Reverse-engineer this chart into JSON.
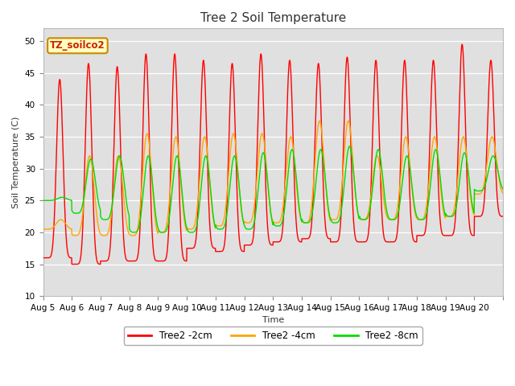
{
  "title": "Tree 2 Soil Temperature",
  "xlabel": "Time",
  "ylabel": "Soil Temperature (C)",
  "ylim": [
    10,
    52
  ],
  "yticks": [
    10,
    15,
    20,
    25,
    30,
    35,
    40,
    45,
    50
  ],
  "legend_label": "TZ_soilco2",
  "series": {
    "2cm": {
      "color": "#ff0000",
      "label": "Tree2 -2cm"
    },
    "4cm": {
      "color": "#ffa500",
      "label": "Tree2 -4cm"
    },
    "8cm": {
      "color": "#00dd00",
      "label": "Tree2 -8cm"
    }
  },
  "bg_color": "#e0e0e0",
  "fig_color": "#ffffff",
  "days": [
    "Aug 5",
    "Aug 6",
    "Aug 7",
    "Aug 8",
    "Aug 9",
    "Aug 10",
    "Aug 11",
    "Aug 12",
    "Aug 13",
    "Aug 14",
    "Aug 15",
    "Aug 16",
    "Aug 17",
    "Aug 18",
    "Aug 19",
    "Aug 20"
  ],
  "peaks_2cm": [
    44,
    46.5,
    46,
    48,
    48,
    47,
    46.5,
    48,
    47,
    46.5,
    47.5,
    47,
    47,
    47,
    49.5,
    47
  ],
  "troughs_2cm": [
    16,
    15,
    15.5,
    15.5,
    15.5,
    17.5,
    17,
    18,
    18.5,
    19,
    18.5,
    18.5,
    18.5,
    19.5,
    19.5,
    22.5
  ],
  "peaks_4cm": [
    22,
    32,
    32,
    35.5,
    35,
    35,
    35.5,
    35.5,
    35,
    37.5,
    37.5,
    32,
    35,
    35,
    35,
    35
  ],
  "troughs_4cm": [
    20.5,
    19.5,
    19.5,
    19.5,
    20,
    20.5,
    21,
    21.5,
    21.5,
    21.5,
    22,
    22,
    22,
    22,
    22.5,
    26
  ],
  "peaks_8cm": [
    25.5,
    31.5,
    32,
    32,
    32,
    32,
    32,
    32.5,
    33,
    33,
    33.5,
    33,
    32,
    33,
    32.5,
    32
  ],
  "troughs_8cm": [
    25,
    23,
    22,
    20,
    20,
    20,
    20.5,
    20.5,
    21,
    21.5,
    21.5,
    22,
    22,
    22,
    22.5,
    26.5
  ]
}
